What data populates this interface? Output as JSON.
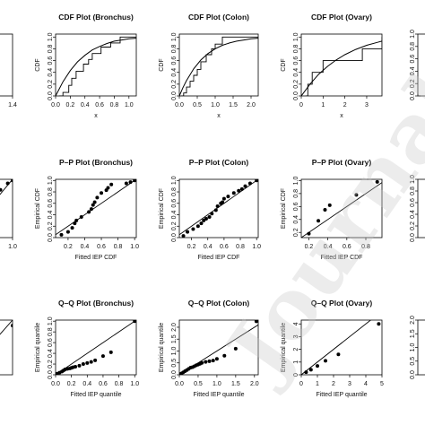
{
  "chart_data": [
    {
      "type": "line",
      "title": "",
      "xlabel": "",
      "ylabel": "",
      "xticks": [
        "",
        ".2",
        "1.4"
      ],
      "yticks": [],
      "series": [],
      "steps": []
    },
    {
      "type": "line",
      "title": "CDF Plot (Bronchus)",
      "xlabel": "x",
      "ylabel": "CDF",
      "xticks": [
        "0.0",
        "0.2",
        "0.4",
        "0.6",
        "0.8",
        "1.0"
      ],
      "yticks": [
        "0.0",
        "0.2",
        "0.4",
        "0.6",
        "0.8",
        "1.0"
      ],
      "xlim": [
        0,
        1.1
      ],
      "ylim": [
        0,
        1.05
      ],
      "curve": {
        "x": [
          0,
          0.05,
          0.1,
          0.2,
          0.3,
          0.4,
          0.5,
          0.6,
          0.7,
          0.8,
          0.9,
          1.0,
          1.1
        ],
        "y": [
          0,
          0.12,
          0.24,
          0.43,
          0.58,
          0.69,
          0.78,
          0.84,
          0.89,
          0.93,
          0.95,
          0.97,
          0.98
        ]
      },
      "steps": {
        "x": [
          0.05,
          0.1,
          0.18,
          0.22,
          0.28,
          0.38,
          0.45,
          0.5,
          0.62,
          0.75,
          0.88,
          1.1
        ],
        "y": [
          0,
          0.06,
          0.18,
          0.3,
          0.42,
          0.54,
          0.62,
          0.72,
          0.83,
          0.9,
          1.0,
          1.0
        ]
      }
    },
    {
      "type": "line",
      "title": "CDF Plot (Colon)",
      "xlabel": "x",
      "ylabel": "CDF",
      "xticks": [
        "0.0",
        "0.5",
        "1.0",
        "1.5",
        "2.0"
      ],
      "yticks": [
        "0.0",
        "0.2",
        "0.4",
        "0.6",
        "0.8",
        "1.0"
      ],
      "xlim": [
        0,
        2.2
      ],
      "ylim": [
        0,
        1.05
      ],
      "curve": {
        "x": [
          0,
          0.1,
          0.2,
          0.4,
          0.6,
          0.8,
          1.0,
          1.2,
          1.4,
          1.6,
          1.8,
          2.0,
          2.2
        ],
        "y": [
          0,
          0.14,
          0.26,
          0.46,
          0.61,
          0.72,
          0.8,
          0.86,
          0.9,
          0.93,
          0.95,
          0.97,
          0.98
        ]
      },
      "steps": {
        "x": [
          0.05,
          0.12,
          0.2,
          0.3,
          0.4,
          0.5,
          0.6,
          0.75,
          0.9,
          1.0,
          1.2,
          2.2
        ],
        "y": [
          0,
          0.05,
          0.15,
          0.25,
          0.35,
          0.45,
          0.58,
          0.7,
          0.8,
          0.88,
          1.0,
          1.0
        ]
      }
    },
    {
      "type": "line",
      "title": "CDF Plot (Ovary)",
      "xlabel": "x",
      "ylabel": "CDF",
      "xticks": [
        "0",
        "1",
        "2",
        "3"
      ],
      "yticks": [
        "0.0",
        "0.2",
        "0.4",
        "0.6",
        "0.8",
        "1.0"
      ],
      "xlim": [
        0,
        3.7
      ],
      "ylim": [
        0,
        1.05
      ],
      "curve": {
        "x": [
          0,
          0.2,
          0.4,
          0.8,
          1.2,
          1.6,
          2.0,
          2.5,
          3.0,
          3.5,
          3.7
        ],
        "y": [
          0,
          0.1,
          0.2,
          0.37,
          0.5,
          0.61,
          0.7,
          0.79,
          0.86,
          0.91,
          0.93
        ]
      },
      "steps": {
        "x": [
          0.2,
          0.3,
          0.5,
          1.0,
          2.8,
          3.7
        ],
        "y": [
          0,
          0.2,
          0.4,
          0.6,
          0.8,
          1.0
        ]
      }
    },
    {
      "type": "line",
      "title": "",
      "xlabel": "",
      "ylabel": "",
      "xticks": [],
      "yticks": [
        "0.0",
        "0.2",
        "0.4",
        "0.6",
        "0.8",
        "1.0"
      ]
    },
    {
      "type": "scatter",
      "title": "",
      "xlabel": "",
      "ylabel": "",
      "xticks": [
        "",
        "1.0"
      ],
      "yticks": [],
      "points": {
        "x": [
          0.55,
          0.75,
          0.9,
          1.0
        ],
        "y": [
          0.7,
          0.82,
          0.93,
          0.98
        ]
      }
    },
    {
      "type": "scatter",
      "title": "P–P Plot (Bronchus)",
      "xlabel": "Fitted IEP CDF",
      "ylabel": "Empirical CDF",
      "xticks": [
        "0.2",
        "0.4",
        "0.6",
        "0.8",
        "1.0"
      ],
      "yticks": [
        "0.0",
        "0.2",
        "0.4",
        "0.6",
        "0.8",
        "1.0"
      ],
      "xlim": [
        0.05,
        1.02
      ],
      "ylim": [
        0,
        1.02
      ],
      "points": {
        "x": [
          0.12,
          0.2,
          0.25,
          0.28,
          0.3,
          0.36,
          0.45,
          0.48,
          0.5,
          0.52,
          0.55,
          0.6,
          0.66,
          0.68,
          0.72,
          0.9,
          0.95,
          1.0
        ],
        "y": [
          0.05,
          0.1,
          0.17,
          0.25,
          0.3,
          0.36,
          0.45,
          0.5,
          0.57,
          0.62,
          0.7,
          0.78,
          0.83,
          0.87,
          0.93,
          0.95,
          0.97,
          1.0
        ]
      }
    },
    {
      "type": "scatter",
      "title": "P–P Plot (Colon)",
      "xlabel": "Fitted IEP CDF",
      "ylabel": "Empirical CDF",
      "xticks": [
        "0.2",
        "0.4",
        "0.6",
        "0.8",
        "1.0"
      ],
      "yticks": [
        "0.0",
        "0.2",
        "0.4",
        "0.6",
        "0.8",
        "1.0"
      ],
      "xlim": [
        0.05,
        1.02
      ],
      "ylim": [
        0,
        1.02
      ],
      "points": {
        "x": [
          0.1,
          0.15,
          0.22,
          0.28,
          0.32,
          0.35,
          0.38,
          0.42,
          0.45,
          0.5,
          0.52,
          0.56,
          0.58,
          0.6,
          0.65,
          0.72,
          0.78,
          0.82,
          0.86,
          0.92,
          1.0
        ],
        "y": [
          0.03,
          0.1,
          0.15,
          0.2,
          0.25,
          0.3,
          0.33,
          0.36,
          0.42,
          0.48,
          0.55,
          0.6,
          0.62,
          0.68,
          0.72,
          0.78,
          0.82,
          0.85,
          0.9,
          0.95,
          1.0
        ]
      }
    },
    {
      "type": "scatter",
      "title": "P–P Plot (Ovary)",
      "xlabel": "Fitted IEP CDF",
      "ylabel": "Empirical CDF",
      "xticks": [
        "0.2",
        "0.4",
        "0.6",
        "0.8"
      ],
      "yticks": [
        "0.2",
        "0.4",
        "0.6",
        "0.8",
        "1.0"
      ],
      "xlim": [
        0.12,
        0.97
      ],
      "ylim": [
        0.12,
        1.02
      ],
      "points": {
        "x": [
          0.2,
          0.3,
          0.37,
          0.42,
          0.7,
          0.92
        ],
        "y": [
          0.18,
          0.38,
          0.55,
          0.62,
          0.78,
          0.98
        ]
      }
    },
    {
      "type": "scatter",
      "title": "",
      "xlabel": "",
      "ylabel": "",
      "xticks": [],
      "yticks": [
        "0.0",
        "0.2",
        "0.4",
        "0.6",
        "0.8",
        "1.0"
      ]
    },
    {
      "type": "scatter",
      "title": "",
      "xlabel": "",
      "ylabel": "",
      "xticks": [
        "1.5"
      ],
      "yticks": [],
      "points": {
        "x": [
          1.0,
          1.6
        ],
        "y": [
          0.9,
          1.0
        ]
      }
    },
    {
      "type": "scatter",
      "title": "Q–Q Plot (Bronchus)",
      "xlabel": "Fitted IEP quantile",
      "ylabel": "Empirical quantile",
      "xticks": [
        "0.0",
        "0.2",
        "0.4",
        "0.6",
        "0.8",
        "1.0"
      ],
      "yticks": [
        "0.0",
        "0.2",
        "0.4",
        "0.6",
        "0.8",
        "1.0"
      ],
      "xlim": [
        0,
        1.02
      ],
      "ylim": [
        0,
        1.02
      ],
      "points": {
        "x": [
          0.02,
          0.05,
          0.08,
          0.1,
          0.12,
          0.15,
          0.18,
          0.2,
          0.22,
          0.25,
          0.3,
          0.35,
          0.4,
          0.45,
          0.5,
          0.6,
          0.7,
          1.0
        ],
        "y": [
          0.02,
          0.04,
          0.06,
          0.08,
          0.1,
          0.11,
          0.12,
          0.13,
          0.14,
          0.15,
          0.17,
          0.2,
          0.22,
          0.24,
          0.27,
          0.35,
          0.42,
          1.0
        ]
      }
    },
    {
      "type": "scatter",
      "title": "Q–Q Plot (Colon)",
      "xlabel": "Fitted IEP quantile",
      "ylabel": "Empirical quantile",
      "xticks": [
        "0.0",
        "0.5",
        "1.0",
        "1.5",
        "2.0"
      ],
      "yticks": [
        "0.0",
        "0.5",
        "1.0",
        "1.5",
        "2.0"
      ],
      "xlim": [
        0,
        2.1
      ],
      "ylim": [
        0,
        2.3
      ],
      "points": {
        "x": [
          0.05,
          0.1,
          0.15,
          0.2,
          0.25,
          0.3,
          0.35,
          0.4,
          0.45,
          0.5,
          0.55,
          0.6,
          0.7,
          0.8,
          0.9,
          1.0,
          1.2,
          1.5,
          2.05
        ],
        "y": [
          0.05,
          0.1,
          0.15,
          0.2,
          0.25,
          0.3,
          0.32,
          0.36,
          0.4,
          0.43,
          0.46,
          0.5,
          0.54,
          0.57,
          0.6,
          0.67,
          0.8,
          1.1,
          2.25
        ]
      }
    },
    {
      "type": "scatter",
      "title": "Q–Q Plot (Ovary)",
      "xlabel": "Fitted IEP quantile",
      "ylabel": "Empirical quantile",
      "xticks": [
        "0",
        "1",
        "2",
        "3",
        "4",
        "5"
      ],
      "yticks": [
        "0",
        "1",
        "2",
        "3",
        "4"
      ],
      "xlim": [
        0,
        5
      ],
      "ylim": [
        0,
        4.3
      ],
      "points": {
        "x": [
          0.3,
          0.6,
          1.0,
          1.5,
          2.3,
          4.8
        ],
        "y": [
          0.2,
          0.4,
          0.7,
          1.1,
          1.6,
          4.0
        ]
      }
    },
    {
      "type": "scatter",
      "title": "",
      "xlabel": "",
      "ylabel": "",
      "xticks": [],
      "yticks": [
        "0.0",
        "0.5",
        "1.0",
        "1.5",
        "2.0"
      ]
    }
  ]
}
